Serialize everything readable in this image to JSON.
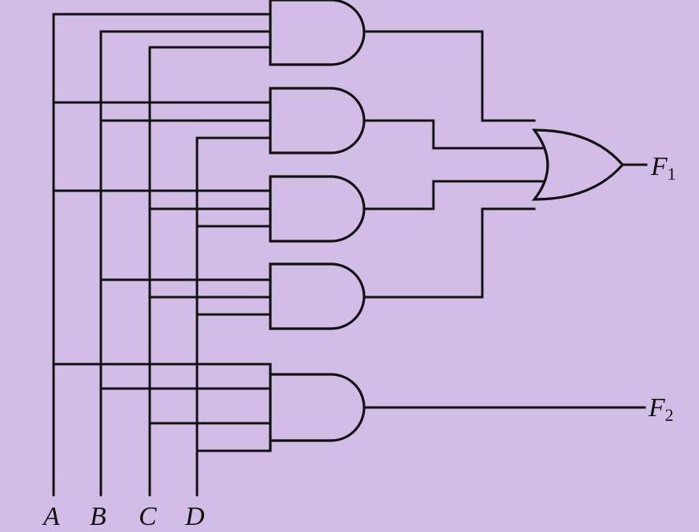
{
  "diagram": {
    "inputs": [
      {
        "id": "A",
        "label": "A"
      },
      {
        "id": "B",
        "label": "B"
      },
      {
        "id": "C",
        "label": "C"
      },
      {
        "id": "D",
        "label": "D"
      }
    ],
    "gates": [
      {
        "id": "and1",
        "type": "AND",
        "inputs": [
          "A",
          "B",
          "C"
        ]
      },
      {
        "id": "and2",
        "type": "AND",
        "inputs": [
          "A",
          "B",
          "D"
        ]
      },
      {
        "id": "and3",
        "type": "AND",
        "inputs": [
          "A",
          "C",
          "D"
        ]
      },
      {
        "id": "and4",
        "type": "AND",
        "inputs": [
          "B",
          "C",
          "D"
        ]
      },
      {
        "id": "and5",
        "type": "AND",
        "inputs": [
          "A",
          "B",
          "C",
          "D"
        ]
      },
      {
        "id": "or1",
        "type": "OR",
        "inputs": [
          "and1",
          "and2",
          "and3",
          "and4"
        ]
      }
    ],
    "outputs": [
      {
        "id": "F1",
        "letter": "F",
        "subscript": "1",
        "source": "or1"
      },
      {
        "id": "F2",
        "letter": "F",
        "subscript": "2",
        "source": "and5"
      }
    ]
  }
}
